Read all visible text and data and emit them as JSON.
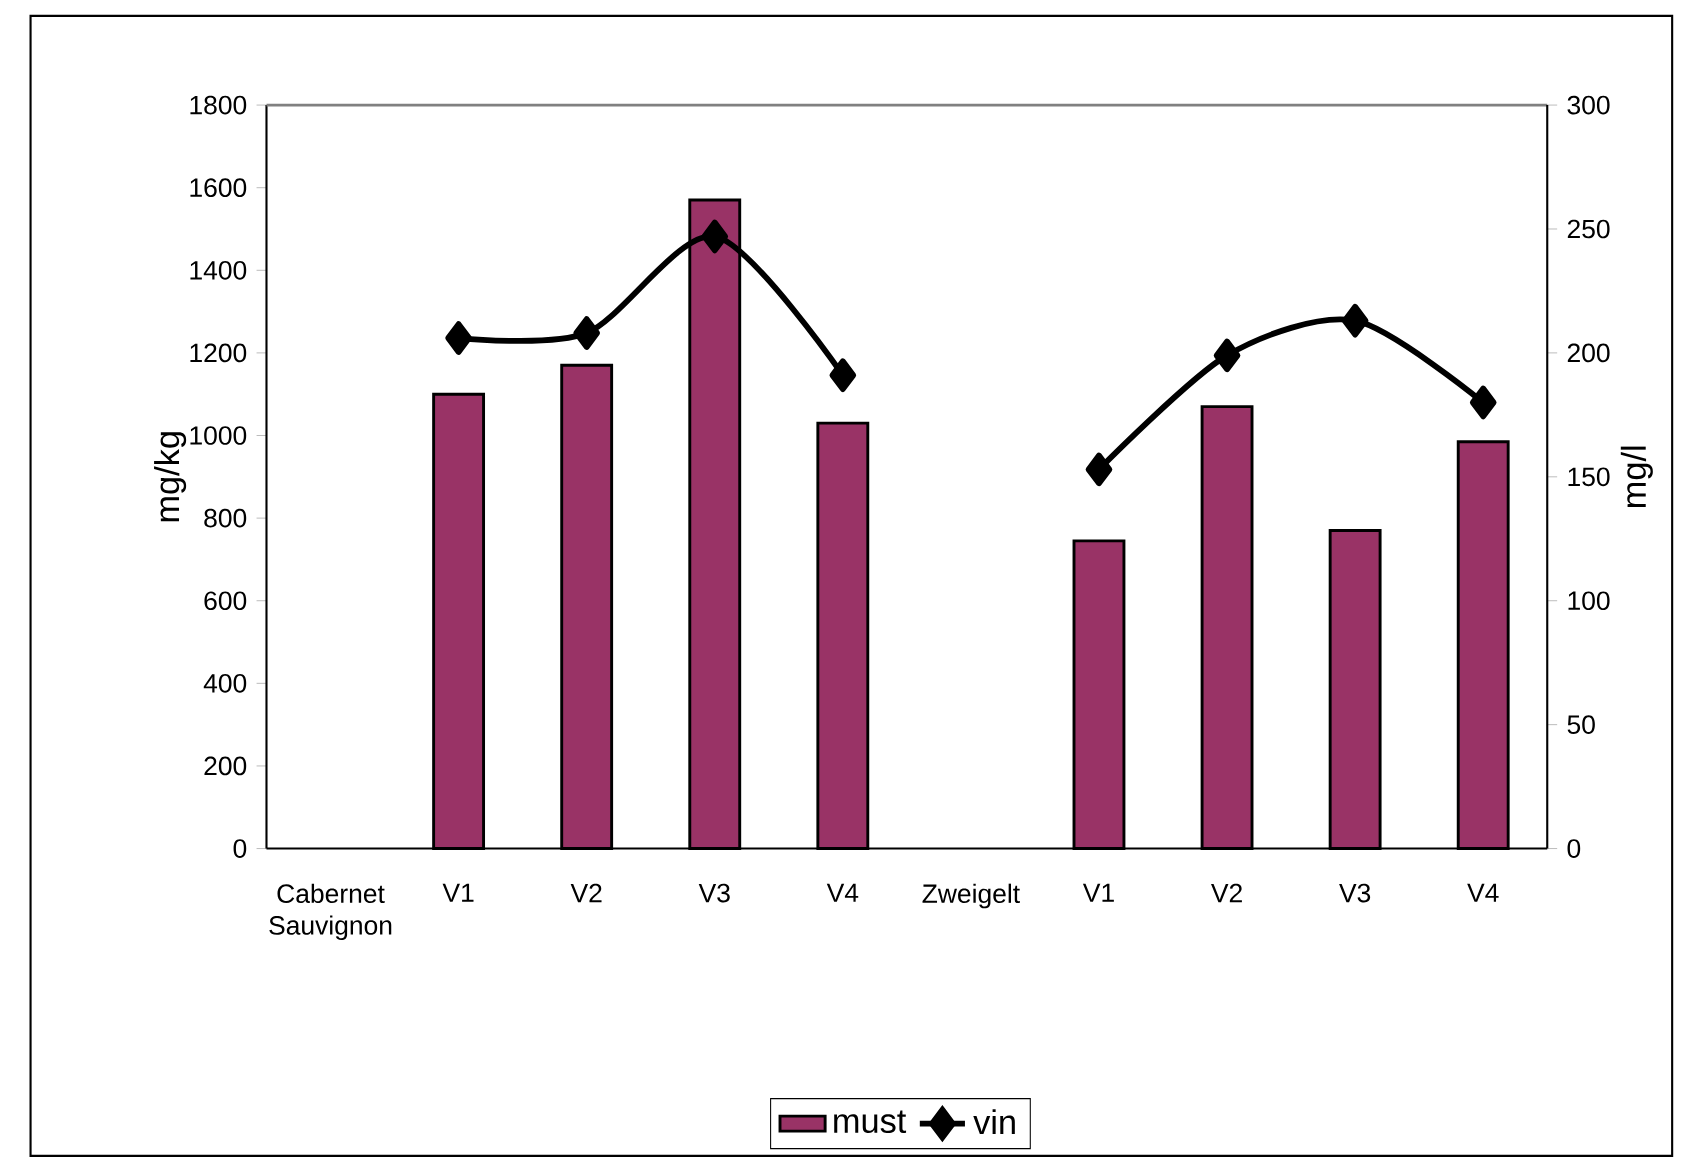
{
  "chart_data": {
    "type": "bar",
    "ylabel": "mg/kg",
    "y2label": "mg/l",
    "categories": [
      "Cabernet Sauvignon",
      "V1",
      "V2",
      "V3",
      "V4",
      "Zweigelt",
      "V1",
      "V2",
      "V3",
      "V4"
    ],
    "series": [
      {
        "name": "must",
        "color": "#993366",
        "values": [
          null,
          1100,
          1170,
          1570,
          1030,
          null,
          745,
          1070,
          770,
          985
        ]
      },
      {
        "name": "vin",
        "type": "line",
        "axis": "y2",
        "marker": "diamond",
        "color": "#000000",
        "values": [
          null,
          206,
          208,
          247,
          191,
          null,
          153,
          199,
          213,
          180
        ]
      }
    ],
    "ylim": [
      0,
      1800
    ],
    "yticks": [
      0,
      200,
      400,
      600,
      800,
      1000,
      1200,
      1400,
      1600,
      1800
    ],
    "y2lim": [
      0,
      300
    ],
    "y2ticks": [
      0,
      50,
      100,
      150,
      200,
      250,
      300
    ],
    "legend": "bottom"
  }
}
